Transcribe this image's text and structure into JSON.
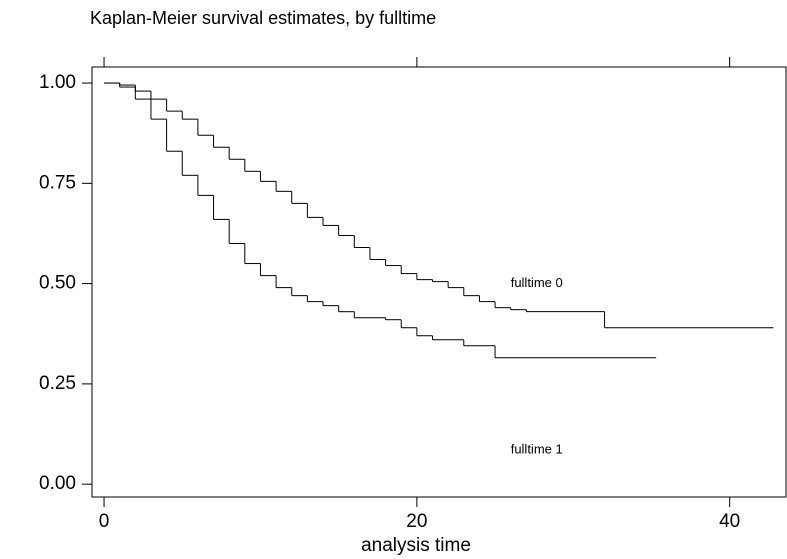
{
  "chart_data": {
    "type": "step",
    "title": "Kaplan-Meier survival estimates, by fulltime",
    "x_label": "analysis time",
    "xlim": [
      -0.77,
      43.6
    ],
    "ylim": [
      -0.032,
      1.04
    ],
    "xticks": [
      0,
      20,
      40
    ],
    "yticks": [
      {
        "value": 0,
        "label": "0.00"
      },
      {
        "value": 0.25,
        "label": "0.25"
      },
      {
        "value": 0.5,
        "label": "0.50"
      },
      {
        "value": 0.75,
        "label": "0.75"
      },
      {
        "value": 1,
        "label": "1.00"
      }
    ],
    "series": [
      {
        "name": "fulltime 0",
        "color": "#000000",
        "x": [
          0,
          1,
          2,
          3,
          4,
          5,
          6,
          7,
          8,
          9,
          10,
          11,
          12,
          13,
          14,
          15,
          16,
          17,
          18,
          19,
          20,
          21,
          22,
          23,
          24,
          25,
          26,
          27,
          32,
          42.8
        ],
        "values": [
          1,
          0.995,
          0.98,
          0.96,
          0.93,
          0.91,
          0.87,
          0.84,
          0.81,
          0.78,
          0.755,
          0.73,
          0.7,
          0.665,
          0.645,
          0.62,
          0.59,
          0.56,
          0.545,
          0.525,
          0.51,
          0.505,
          0.49,
          0.47,
          0.455,
          0.44,
          0.435,
          0.43,
          0.39,
          0.39
        ]
      },
      {
        "name": "fulltime 1",
        "color": "#000000",
        "x": [
          0,
          1,
          2,
          3,
          4,
          5,
          6,
          7,
          8,
          9,
          10,
          11,
          12,
          13,
          14,
          15,
          16,
          18,
          19,
          20,
          21,
          23,
          25,
          35.3
        ],
        "values": [
          1,
          0.99,
          0.96,
          0.91,
          0.83,
          0.77,
          0.72,
          0.66,
          0.6,
          0.55,
          0.52,
          0.49,
          0.47,
          0.455,
          0.445,
          0.43,
          0.415,
          0.41,
          0.39,
          0.37,
          0.36,
          0.345,
          0.315,
          0.315
        ]
      }
    ]
  }
}
